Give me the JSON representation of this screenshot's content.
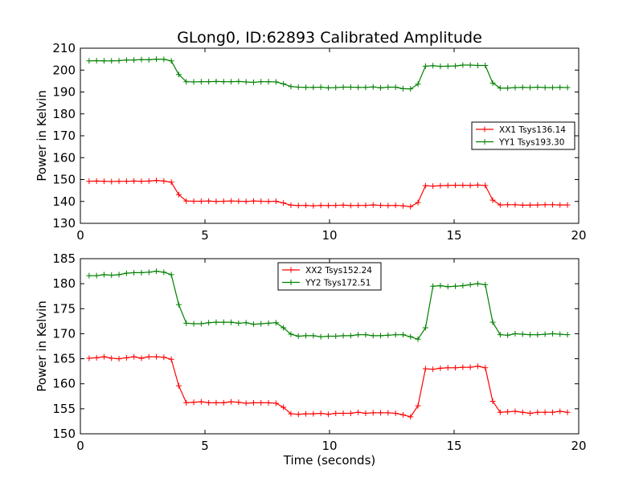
{
  "figure": {
    "title": "GLong0, ID:62893 Calibrated Amplitude"
  },
  "chart_data": [
    {
      "type": "line",
      "title": "GLong0, ID:62893 Calibrated Amplitude",
      "xlabel": "",
      "ylabel": "Power in Kelvin",
      "xlim": [
        0,
        20
      ],
      "ylim": [
        130,
        210
      ],
      "xticks": [
        0,
        5,
        10,
        15,
        20
      ],
      "yticks": [
        130,
        140,
        150,
        160,
        170,
        180,
        190,
        200,
        210
      ],
      "grid": false,
      "legend_position": "center-right",
      "x": [
        0.35,
        0.65,
        0.95,
        1.25,
        1.55,
        1.85,
        2.15,
        2.45,
        2.75,
        3.05,
        3.35,
        3.65,
        3.95,
        4.25,
        4.55,
        4.85,
        5.15,
        5.45,
        5.75,
        6.05,
        6.35,
        6.65,
        6.95,
        7.25,
        7.55,
        7.85,
        8.15,
        8.45,
        8.75,
        9.05,
        9.35,
        9.65,
        9.95,
        10.25,
        10.55,
        10.85,
        11.15,
        11.45,
        11.75,
        12.05,
        12.35,
        12.65,
        12.95,
        13.25,
        13.55,
        13.85,
        14.15,
        14.45,
        14.75,
        15.05,
        15.35,
        15.65,
        15.95,
        16.25,
        16.55,
        16.85,
        17.15,
        17.45,
        17.75,
        18.05,
        18.35,
        18.65,
        18.95,
        19.25,
        19.55
      ],
      "series": [
        {
          "name": "XX1 Tsys136.14",
          "color": "#ff0000",
          "values": [
            149.2,
            149.3,
            149.2,
            149.1,
            149.2,
            149.2,
            149.3,
            149.2,
            149.3,
            149.6,
            149.3,
            148.8,
            143.1,
            140.2,
            140.1,
            140.1,
            140.2,
            140.0,
            140.1,
            140.2,
            140.1,
            140.0,
            140.2,
            140.1,
            140.0,
            140.1,
            139.3,
            138.3,
            138.1,
            138.2,
            138.0,
            138.2,
            138.1,
            138.2,
            138.3,
            138.1,
            138.2,
            138.2,
            138.4,
            138.2,
            138.1,
            138.2,
            138.0,
            137.6,
            139.5,
            147.2,
            147.0,
            147.2,
            147.3,
            147.4,
            147.4,
            147.3,
            147.5,
            147.3,
            140.6,
            138.4,
            138.5,
            138.5,
            138.3,
            138.3,
            138.4,
            138.5,
            138.5,
            138.4,
            138.4
          ]
        },
        {
          "name": "YY1 Tsys193.30",
          "color": "#008000",
          "values": [
            204.2,
            204.3,
            204.2,
            204.2,
            204.3,
            204.6,
            204.6,
            204.8,
            204.7,
            205.0,
            204.9,
            204.2,
            198.0,
            194.7,
            194.6,
            194.7,
            194.7,
            194.8,
            194.7,
            194.7,
            194.8,
            194.6,
            194.4,
            194.7,
            194.7,
            194.6,
            193.7,
            192.5,
            192.2,
            192.1,
            192.1,
            192.2,
            191.9,
            192.0,
            192.2,
            192.2,
            192.1,
            192.1,
            192.3,
            191.9,
            192.2,
            192.2,
            191.5,
            191.4,
            193.6,
            201.8,
            202.0,
            201.7,
            201.8,
            201.9,
            202.3,
            202.3,
            202.1,
            202.1,
            194.1,
            191.8,
            191.8,
            192.0,
            192.1,
            192.0,
            192.2,
            192.0,
            192.0,
            192.1,
            192.0
          ]
        }
      ]
    },
    {
      "type": "line",
      "title": "",
      "xlabel": "Time (seconds)",
      "ylabel": "Power in Kelvin",
      "xlim": [
        0,
        20
      ],
      "ylim": [
        150,
        185
      ],
      "xticks": [
        0,
        5,
        10,
        15,
        20
      ],
      "yticks": [
        150,
        155,
        160,
        165,
        170,
        175,
        180,
        185
      ],
      "grid": false,
      "legend_position": "top-center",
      "x": [
        0.35,
        0.65,
        0.95,
        1.25,
        1.55,
        1.85,
        2.15,
        2.45,
        2.75,
        3.05,
        3.35,
        3.65,
        3.95,
        4.25,
        4.55,
        4.85,
        5.15,
        5.45,
        5.75,
        6.05,
        6.35,
        6.65,
        6.95,
        7.25,
        7.55,
        7.85,
        8.15,
        8.45,
        8.75,
        9.05,
        9.35,
        9.65,
        9.95,
        10.25,
        10.55,
        10.85,
        11.15,
        11.45,
        11.75,
        12.05,
        12.35,
        12.65,
        12.95,
        13.25,
        13.55,
        13.85,
        14.15,
        14.45,
        14.75,
        15.05,
        15.35,
        15.65,
        15.95,
        16.25,
        16.55,
        16.85,
        17.15,
        17.45,
        17.75,
        18.05,
        18.35,
        18.65,
        18.95,
        19.25,
        19.55
      ],
      "series": [
        {
          "name": "XX2 Tsys152.24",
          "color": "#ff0000",
          "values": [
            165.1,
            165.2,
            165.4,
            165.1,
            165.0,
            165.2,
            165.4,
            165.1,
            165.4,
            165.4,
            165.3,
            164.9,
            159.6,
            156.2,
            156.3,
            156.4,
            156.2,
            156.2,
            156.2,
            156.4,
            156.3,
            156.1,
            156.2,
            156.2,
            156.2,
            156.1,
            155.3,
            154.0,
            153.9,
            154.0,
            154.0,
            154.1,
            153.9,
            154.1,
            154.1,
            154.1,
            154.3,
            154.1,
            154.2,
            154.2,
            154.2,
            154.1,
            153.8,
            153.4,
            155.6,
            163.0,
            162.9,
            163.1,
            163.2,
            163.2,
            163.3,
            163.3,
            163.5,
            163.2,
            156.5,
            154.3,
            154.4,
            154.5,
            154.3,
            154.1,
            154.3,
            154.3,
            154.3,
            154.5,
            154.3
          ]
        },
        {
          "name": "YY2 Tsys172.51",
          "color": "#008000",
          "values": [
            181.6,
            181.6,
            181.8,
            181.7,
            181.8,
            182.1,
            182.2,
            182.2,
            182.3,
            182.5,
            182.3,
            181.8,
            175.8,
            172.1,
            172.0,
            172.0,
            172.2,
            172.3,
            172.3,
            172.3,
            172.1,
            172.2,
            171.9,
            172.0,
            172.1,
            172.2,
            171.2,
            169.9,
            169.5,
            169.6,
            169.6,
            169.4,
            169.5,
            169.5,
            169.6,
            169.6,
            169.8,
            169.8,
            169.6,
            169.6,
            169.7,
            169.8,
            169.8,
            169.4,
            168.9,
            171.2,
            179.5,
            179.6,
            179.4,
            179.5,
            179.6,
            179.8,
            180.0,
            179.8,
            172.3,
            169.8,
            169.7,
            170.0,
            169.9,
            169.8,
            169.8,
            169.9,
            170.0,
            169.9,
            169.8
          ]
        }
      ]
    }
  ]
}
